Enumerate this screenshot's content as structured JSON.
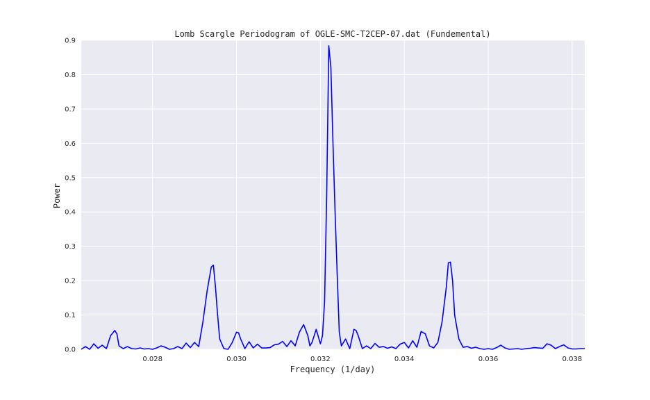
{
  "chart_data": {
    "type": "line",
    "title": "Lomb Scargle Periodogram of OGLE-SMC-T2CEP-07.dat (Fundemental)",
    "xlabel": "Frequency (1/day)",
    "ylabel": "Power",
    "xlim": [
      0.0263,
      0.0383
    ],
    "ylim": [
      0.0,
      0.9
    ],
    "xticks": [
      "0.028",
      "0.030",
      "0.032",
      "0.034",
      "0.036",
      "0.038"
    ],
    "yticks": [
      "0.0",
      "0.1",
      "0.2",
      "0.3",
      "0.4",
      "0.5",
      "0.6",
      "0.7",
      "0.8",
      "0.9"
    ],
    "grid": true,
    "background": "#eaeaf2",
    "line_color": "#0000ff",
    "series": [
      {
        "x": [
          0.0263,
          0.0264,
          0.0265,
          0.0266,
          0.0267,
          0.0268,
          0.0269,
          0.027,
          0.0271,
          0.02715,
          0.0272,
          0.0273,
          0.0274,
          0.0275,
          0.0276,
          0.0277,
          0.0278,
          0.0279,
          0.028,
          0.0281,
          0.0282,
          0.0283,
          0.0284,
          0.0285,
          0.0286,
          0.0287,
          0.0288,
          0.0289,
          0.029,
          0.0291,
          0.0292,
          0.0293,
          0.0294,
          0.02945,
          0.0295,
          0.02955,
          0.0296,
          0.0297,
          0.0298,
          0.0299,
          0.03,
          0.03005,
          0.0301,
          0.0302,
          0.0303,
          0.0304,
          0.0305,
          0.0306,
          0.0307,
          0.0308,
          0.0309,
          0.031,
          0.0311,
          0.0312,
          0.0313,
          0.0314,
          0.0315,
          0.0316,
          0.0317,
          0.03175,
          0.0318,
          0.0319,
          0.032,
          0.03205,
          0.0321,
          0.03215,
          0.0322,
          0.03225,
          0.0323,
          0.03235,
          0.0324,
          0.03245,
          0.0325,
          0.0326,
          0.0327,
          0.0328,
          0.03285,
          0.0329,
          0.033,
          0.0331,
          0.0332,
          0.0333,
          0.0334,
          0.0335,
          0.0336,
          0.0337,
          0.0338,
          0.0339,
          0.034,
          0.0341,
          0.0342,
          0.0343,
          0.0344,
          0.0345,
          0.0346,
          0.0347,
          0.0348,
          0.0349,
          0.035,
          0.03505,
          0.0351,
          0.03515,
          0.0352,
          0.0353,
          0.0354,
          0.0355,
          0.0356,
          0.0357,
          0.0358,
          0.0359,
          0.036,
          0.0361,
          0.0362,
          0.0363,
          0.0364,
          0.0365,
          0.0366,
          0.0367,
          0.0368,
          0.0369,
          0.037,
          0.0371,
          0.0372,
          0.0373,
          0.0374,
          0.0375,
          0.0376,
          0.0377,
          0.0378,
          0.0379,
          0.038,
          0.0381,
          0.0382,
          0.0383
        ],
        "y": [
          0.0,
          0.008,
          0.0,
          0.016,
          0.003,
          0.012,
          0.002,
          0.04,
          0.055,
          0.045,
          0.01,
          0.002,
          0.008,
          0.002,
          0.001,
          0.004,
          0.001,
          0.002,
          0.0,
          0.004,
          0.01,
          0.006,
          0.0,
          0.002,
          0.008,
          0.002,
          0.018,
          0.005,
          0.02,
          0.008,
          0.08,
          0.17,
          0.24,
          0.245,
          0.18,
          0.1,
          0.03,
          0.002,
          0.0,
          0.02,
          0.05,
          0.048,
          0.03,
          0.002,
          0.022,
          0.004,
          0.015,
          0.004,
          0.004,
          0.005,
          0.013,
          0.015,
          0.023,
          0.008,
          0.025,
          0.01,
          0.05,
          0.072,
          0.04,
          0.01,
          0.02,
          0.058,
          0.016,
          0.04,
          0.14,
          0.45,
          0.884,
          0.82,
          0.6,
          0.4,
          0.22,
          0.05,
          0.01,
          0.03,
          0.002,
          0.058,
          0.055,
          0.04,
          0.002,
          0.01,
          0.002,
          0.017,
          0.006,
          0.008,
          0.003,
          0.007,
          0.002,
          0.015,
          0.02,
          0.004,
          0.025,
          0.006,
          0.052,
          0.045,
          0.01,
          0.004,
          0.02,
          0.08,
          0.18,
          0.252,
          0.254,
          0.2,
          0.1,
          0.03,
          0.006,
          0.008,
          0.003,
          0.006,
          0.002,
          0.0,
          0.002,
          0.0,
          0.005,
          0.012,
          0.004,
          0.0,
          0.001,
          0.002,
          0.0,
          0.002,
          0.003,
          0.005,
          0.004,
          0.003,
          0.016,
          0.012,
          0.002,
          0.008,
          0.013,
          0.004,
          0.001,
          0.001,
          0.002,
          0.002
        ]
      }
    ]
  }
}
